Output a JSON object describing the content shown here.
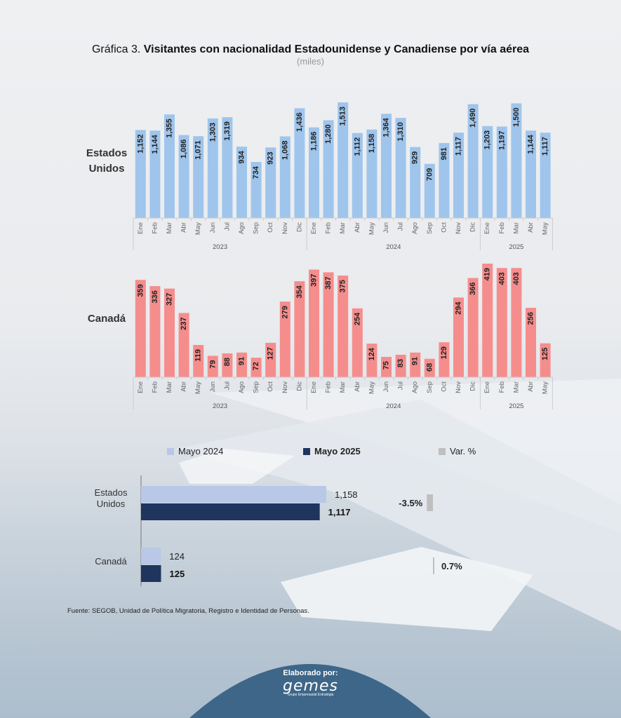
{
  "title": {
    "prefix": "Gráfica 3. ",
    "main": "Visitantes con nacionalidad Estadounidense y Canadiense por vía aérea",
    "units": "(miles)"
  },
  "colors": {
    "us": "#9fc5ec",
    "canada": "#f68d8d",
    "may2024": "#b8c8e6",
    "may2025": "#1f355e",
    "var": "#bfbfbf"
  },
  "chart_data": [
    {
      "type": "bar",
      "label_lines": [
        "Estados",
        "Unidos"
      ],
      "months": [
        "Ene",
        "Feb",
        "Mar",
        "Abr",
        "May",
        "Jun",
        "Jul",
        "Ago",
        "Sep",
        "Oct",
        "Nov",
        "Dic",
        "Ene",
        "Feb",
        "Mar",
        "Abr",
        "May",
        "Jun",
        "Jul",
        "Ago",
        "Sep",
        "Oct",
        "Nov",
        "Dic",
        "Ene",
        "Feb",
        "Mar",
        "Abr",
        "May"
      ],
      "years": [
        {
          "label": "2023",
          "count": 12
        },
        {
          "label": "2024",
          "count": 12
        },
        {
          "label": "2025",
          "count": 5
        }
      ],
      "values": [
        1152,
        1144,
        1355,
        1086,
        1071,
        1303,
        1319,
        934,
        734,
        923,
        1068,
        1436,
        1186,
        1280,
        1513,
        1112,
        1158,
        1364,
        1310,
        929,
        709,
        981,
        1117,
        1490,
        1203,
        1197,
        1500,
        1144,
        1117
      ],
      "value_labels": [
        "1,152",
        "1,144",
        "1,355",
        "1,086",
        "1,071",
        "1,303",
        "1,319",
        "934",
        "734",
        "923",
        "1,068",
        "1,436",
        "1,186",
        "1,280",
        "1,513",
        "1,112",
        "1,158",
        "1,364",
        "1,310",
        "929",
        "709",
        "981",
        "1,117",
        "1,490",
        "1,203",
        "1,197",
        "1,500",
        "1,144",
        "1,117"
      ]
    },
    {
      "type": "bar",
      "label_lines": [
        "Canadá"
      ],
      "months": [
        "Ene",
        "Feb",
        "Mar",
        "Abr",
        "May",
        "Jun",
        "Jul",
        "Ago",
        "Sep",
        "Oct",
        "Nov",
        "Dic",
        "Ene",
        "Feb",
        "Mar",
        "Abr",
        "May",
        "Jun",
        "Jul",
        "Ago",
        "Sep",
        "Oct",
        "Nov",
        "Dic",
        "Ene",
        "Feb",
        "Mar",
        "Abr",
        "May"
      ],
      "years": [
        {
          "label": "2023",
          "count": 12
        },
        {
          "label": "2024",
          "count": 12
        },
        {
          "label": "2025",
          "count": 5
        }
      ],
      "values": [
        359,
        336,
        327,
        237,
        119,
        79,
        88,
        91,
        72,
        127,
        279,
        354,
        397,
        387,
        375,
        254,
        124,
        75,
        83,
        91,
        68,
        129,
        294,
        366,
        419,
        403,
        403,
        256,
        125
      ],
      "value_labels": [
        "359",
        "336",
        "327",
        "237",
        "119",
        "79",
        "88",
        "91",
        "72",
        "127",
        "279",
        "354",
        "397",
        "387",
        "375",
        "254",
        "124",
        "75",
        "83",
        "91",
        "68",
        "129",
        "294",
        "366",
        "419",
        "403",
        "403",
        "256",
        "125"
      ]
    },
    {
      "type": "bar",
      "orientation": "horizontal",
      "legend": [
        "Mayo 2024",
        "Mayo 2025",
        "Var. %"
      ],
      "groups": [
        {
          "label_lines": [
            "Estados",
            "Unidos"
          ],
          "may2024": 1158,
          "may2024_label": "1,158",
          "may2025": 1117,
          "may2025_label": "1,117",
          "var": -3.5,
          "var_label": "-3.5%"
        },
        {
          "label_lines": [
            "Canadá"
          ],
          "may2024": 124,
          "may2024_label": "124",
          "may2025": 125,
          "may2025_label": "125",
          "var": 0.7,
          "var_label": "0.7%"
        }
      ]
    }
  ],
  "source": "Fuente: SEGOB, Unidad de Política Migratoria, Registro e Identidad de Personas.",
  "footer": {
    "by": "Elaborado por:",
    "logo": "gemes",
    "tagline": "Grupo Empresarial Estratégia"
  }
}
